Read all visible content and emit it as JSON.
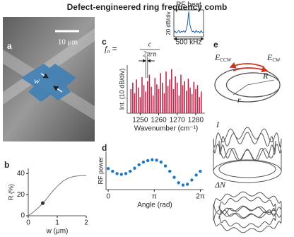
{
  "title": "Defect-engineered ring frequency comb",
  "panels": {
    "a": {
      "label": "a",
      "scale_bar": "10 μm",
      "width_label": "w"
    },
    "e": {
      "label": "e",
      "field_ccw": {
        "symbol": "E",
        "subscript": "CCW"
      },
      "field_cw": {
        "symbol": "E",
        "subscript": "CW"
      },
      "outer_radius": "R",
      "inner_radius": "r",
      "intensity": "I",
      "index_change": "ΔN"
    }
  },
  "chart_data": [
    {
      "panel": "b",
      "type": "line",
      "ylabel": "R (%)",
      "xlabel": "w (μm)",
      "x": [
        0,
        0.2,
        0.4,
        0.6,
        0.8,
        1.0,
        1.2,
        1.4,
        1.6,
        1.8,
        2.0
      ],
      "values": [
        0,
        4,
        9,
        15,
        22,
        28,
        33,
        36,
        37.5,
        38,
        38
      ],
      "color": "#777777",
      "highlight": {
        "x": 0.5,
        "y": 12,
        "color": "#333333"
      },
      "xlim": [
        0,
        2
      ],
      "xticks": [
        0,
        1,
        2
      ],
      "ylim": [
        0,
        45
      ],
      "yticks": [
        0,
        20,
        40
      ]
    },
    {
      "panel": "c",
      "type": "bar",
      "ylabel": "Int. (10 dB/div)",
      "xlabel": "Wavenumber (cm⁻¹)",
      "annotation": {
        "lhs": "f",
        "lhs_sub": "rt",
        "equals": "=",
        "numerator": "c",
        "denominator": "2πrn"
      },
      "x": [
        1245,
        1246,
        1247,
        1248,
        1249,
        1250,
        1251,
        1252,
        1253,
        1254,
        1255,
        1256,
        1257,
        1258,
        1259,
        1260,
        1261,
        1262,
        1263,
        1264,
        1265,
        1266,
        1267,
        1268,
        1269,
        1270,
        1271,
        1272,
        1273,
        1274,
        1275,
        1276,
        1277,
        1278,
        1279,
        1280,
        1281,
        1282,
        1283
      ],
      "values": [
        -30,
        -22,
        -35,
        -18,
        -28,
        -40,
        -15,
        -25,
        -33,
        -20,
        -12,
        -27,
        -38,
        -16,
        -24,
        -30,
        -10,
        -22,
        -35,
        -8,
        -26,
        -18,
        -5,
        -30,
        -14,
        -22,
        -38,
        -12,
        -25,
        -20,
        -32,
        -17,
        -28,
        -36,
        -21,
        -30,
        -25,
        -40,
        -33
      ],
      "color": "#c8244a",
      "xlim": [
        1243,
        1285
      ],
      "xticks": [
        1250,
        1260,
        1270,
        1280
      ],
      "ylim": [
        -60,
        0
      ]
    },
    {
      "type": "line",
      "title": "RF beat",
      "ylabel": "20 dB/div",
      "xlabel": "500 kHz",
      "x": [
        -300,
        -275,
        -250,
        -225,
        -200,
        -175,
        -150,
        -125,
        -100,
        -75,
        -50,
        -25,
        0,
        25,
        50,
        75,
        100,
        125,
        150,
        175,
        200,
        225,
        250,
        275,
        300
      ],
      "values": [
        -66,
        -62,
        -68,
        -64,
        -60,
        -67,
        -63,
        -65,
        -61,
        -66,
        -58,
        -40,
        0,
        -42,
        -57,
        -64,
        -62,
        -67,
        -60,
        -65,
        -63,
        -68,
        -61,
        -66,
        -64
      ],
      "color": "#1f5fa8",
      "xlim": [
        -300,
        300
      ],
      "ylim": [
        -80,
        5
      ]
    },
    {
      "panel": "d",
      "type": "scatter",
      "ylabel": "RF power",
      "xlabel": "Angle (rad)",
      "x": [
        0,
        0.3,
        0.6,
        0.9,
        1.2,
        1.5,
        1.8,
        2.1,
        2.4,
        2.7,
        3.0,
        3.3,
        3.6,
        3.9,
        4.2,
        4.5,
        4.8,
        5.1,
        5.4,
        5.7,
        6.0,
        6.28
      ],
      "values": [
        0.55,
        0.48,
        0.42,
        0.4,
        0.42,
        0.48,
        0.56,
        0.65,
        0.72,
        0.76,
        0.78,
        0.77,
        0.72,
        0.62,
        0.48,
        0.32,
        0.18,
        0.12,
        0.14,
        0.25,
        0.38,
        0.48
      ],
      "color": "#1f77c4",
      "xlim": [
        -0.15,
        6.5
      ],
      "xticks": [
        0,
        {
          "value": 3.14159,
          "label": "π"
        },
        {
          "value": 6.28318,
          "label": "2π"
        }
      ],
      "ylim": [
        0,
        1
      ]
    }
  ]
}
